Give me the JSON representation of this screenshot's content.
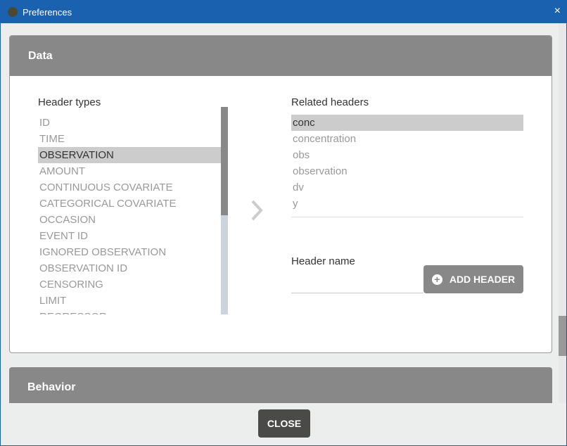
{
  "window": {
    "title": "Preferences",
    "close_icon": "×"
  },
  "data_section": {
    "title": "Data",
    "header_types_label": "Header types",
    "header_types": [
      "ID",
      "TIME",
      "OBSERVATION",
      "AMOUNT",
      "CONTINUOUS COVARIATE",
      "CATEGORICAL COVARIATE",
      "OCCASION",
      "EVENT ID",
      "IGNORED OBSERVATION",
      "OBSERVATION ID",
      "CENSORING",
      "LIMIT",
      "REGRESSOR"
    ],
    "selected_header_type": "OBSERVATION",
    "related_headers_label": "Related headers",
    "related_headers": [
      "conc",
      "concentration",
      "obs",
      "observation",
      "dv",
      "y"
    ],
    "selected_related": "conc",
    "header_name_label": "Header name",
    "header_name_value": "",
    "add_header_label": "ADD HEADER"
  },
  "behavior_section": {
    "title": "Behavior"
  },
  "footer": {
    "close_label": "CLOSE"
  }
}
